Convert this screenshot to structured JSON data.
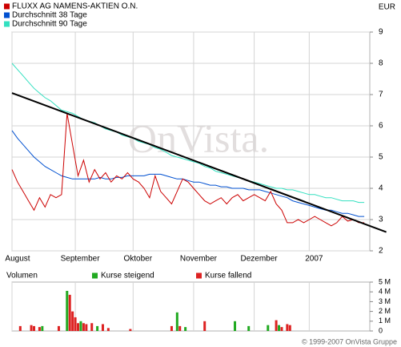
{
  "chart_data": [
    {
      "type": "line",
      "currency": "EUR",
      "watermark": "OnVista.",
      "xlim": [
        0,
        130
      ],
      "xticks": [
        {
          "value": 0,
          "label": "August"
        },
        {
          "value": 23,
          "label": "September"
        },
        {
          "value": 44,
          "label": "Oktober"
        },
        {
          "value": 66,
          "label": "November"
        },
        {
          "value": 88,
          "label": "Dezember"
        },
        {
          "value": 108,
          "label": "2007"
        }
      ],
      "ylim": [
        2,
        9
      ],
      "yticks": [
        2,
        3,
        4,
        5,
        6,
        7,
        8,
        9
      ],
      "grid": true,
      "x": [
        0,
        2,
        4,
        6,
        8,
        10,
        12,
        14,
        16,
        18,
        20,
        22,
        24,
        26,
        28,
        30,
        32,
        34,
        36,
        38,
        40,
        42,
        44,
        46,
        48,
        50,
        52,
        54,
        56,
        58,
        60,
        62,
        64,
        66,
        68,
        70,
        72,
        74,
        76,
        78,
        80,
        82,
        84,
        86,
        88,
        90,
        92,
        94,
        96,
        98,
        100,
        102,
        104,
        106,
        108,
        110,
        112,
        114,
        116,
        118,
        120,
        122,
        124,
        126,
        128
      ],
      "series": [
        {
          "name": "FLUXX AG NAMENS-AKTIEN O.N.",
          "color": "#cc0000",
          "values": [
            4.6,
            4.2,
            3.9,
            3.6,
            3.3,
            3.7,
            3.4,
            3.8,
            3.7,
            3.8,
            6.4,
            5.4,
            4.4,
            4.9,
            4.2,
            4.6,
            4.3,
            4.5,
            4.2,
            4.4,
            4.3,
            4.5,
            4.3,
            4.2,
            4.0,
            3.7,
            4.4,
            3.9,
            3.7,
            3.5,
            3.9,
            4.3,
            4.2,
            4.0,
            3.8,
            3.6,
            3.5,
            3.6,
            3.7,
            3.5,
            3.7,
            3.8,
            3.6,
            3.7,
            3.8,
            3.7,
            3.6,
            3.9,
            3.5,
            3.3,
            2.9,
            2.9,
            3.0,
            2.9,
            3.0,
            3.1,
            3.0,
            2.9,
            2.8,
            2.9,
            3.1,
            2.95,
            3.0,
            2.9,
            2.9
          ]
        },
        {
          "name": "Durchschnitt 38 Tage",
          "color": "#0050d0",
          "values": [
            5.85,
            5.6,
            5.4,
            5.2,
            5.0,
            4.85,
            4.7,
            4.6,
            4.5,
            4.4,
            4.35,
            4.3,
            4.3,
            4.3,
            4.3,
            4.3,
            4.35,
            4.3,
            4.3,
            4.35,
            4.35,
            4.4,
            4.4,
            4.4,
            4.4,
            4.45,
            4.45,
            4.45,
            4.4,
            4.35,
            4.3,
            4.3,
            4.25,
            4.2,
            4.2,
            4.15,
            4.1,
            4.1,
            4.05,
            4.05,
            4.0,
            4.0,
            4.0,
            3.95,
            3.95,
            3.95,
            3.9,
            3.85,
            3.8,
            3.75,
            3.7,
            3.6,
            3.55,
            3.5,
            3.45,
            3.4,
            3.35,
            3.3,
            3.3,
            3.25,
            3.2,
            3.2,
            3.15,
            3.1,
            3.1
          ]
        },
        {
          "name": "Durchschnitt 90 Tage",
          "color": "#33e0c0",
          "values": [
            8.0,
            7.8,
            7.6,
            7.4,
            7.2,
            7.05,
            6.9,
            6.8,
            6.65,
            6.5,
            6.45,
            6.4,
            6.3,
            6.2,
            6.15,
            6.1,
            6.0,
            5.9,
            5.85,
            5.8,
            5.7,
            5.65,
            5.6,
            5.5,
            5.45,
            5.4,
            5.3,
            5.25,
            5.15,
            5.05,
            5.0,
            4.95,
            4.9,
            4.85,
            4.8,
            4.7,
            4.65,
            4.55,
            4.5,
            4.45,
            4.4,
            4.35,
            4.3,
            4.25,
            4.2,
            4.15,
            4.1,
            4.05,
            4.0,
            4.0,
            3.95,
            3.95,
            3.9,
            3.85,
            3.8,
            3.8,
            3.75,
            3.7,
            3.7,
            3.65,
            3.6,
            3.6,
            3.6,
            3.55,
            3.55
          ]
        }
      ],
      "trendline": {
        "color": "#000000",
        "x": [
          0,
          136
        ],
        "values": [
          7.05,
          2.6
        ]
      }
    },
    {
      "type": "bar",
      "title": "Volumen",
      "xlim": [
        0,
        130
      ],
      "ylim": [
        0,
        5
      ],
      "yticks": [
        0,
        {
          "value": 1,
          "label": "1 M"
        },
        {
          "value": 2,
          "label": "2 M"
        },
        {
          "value": 3,
          "label": "3 M"
        },
        {
          "value": 4,
          "label": "4 M"
        },
        {
          "value": 5,
          "label": "5 M"
        }
      ],
      "series": [
        {
          "name": "Kurse steigend",
          "color": "#22aa22",
          "x": [
            11,
            20,
            25,
            31,
            60,
            63,
            81,
            86,
            93,
            97
          ],
          "values": [
            0.5,
            4.1,
            1.0,
            0.5,
            1.9,
            0.4,
            1.0,
            0.5,
            0.6,
            0.6
          ]
        },
        {
          "name": "Kurse fallend",
          "color": "#dd2222",
          "x": [
            3,
            7,
            8,
            10,
            17,
            21,
            22,
            23,
            24,
            26,
            27,
            29,
            33,
            35,
            43,
            58,
            61,
            70,
            96,
            98,
            100,
            101
          ],
          "values": [
            0.5,
            0.6,
            0.5,
            0.4,
            0.5,
            3.7,
            2.0,
            1.4,
            0.8,
            0.8,
            0.7,
            0.8,
            0.7,
            0.3,
            0.2,
            0.5,
            0.5,
            1.0,
            1.1,
            0.4,
            0.7,
            0.6
          ]
        }
      ]
    }
  ],
  "footer": "© 1999-2007 OnVista Gruppe"
}
